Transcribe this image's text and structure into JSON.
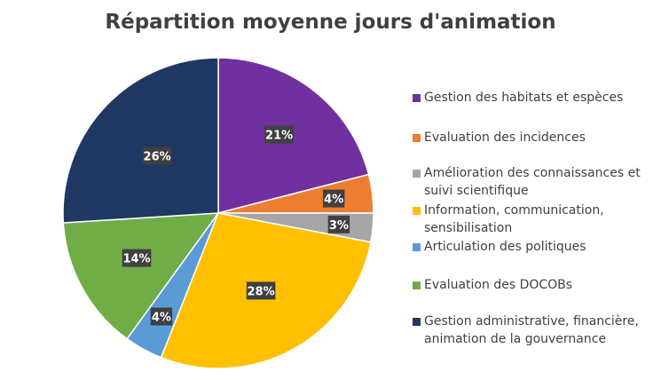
{
  "chart_data": {
    "type": "pie",
    "title": "Répartition moyenne jours d'animation",
    "categories": [
      "Gestion des habitats et espèces",
      "Evaluation des incidences",
      "Amélioration des connaissances et suivi scientifique",
      "Information, communication, sensibilisation",
      "Articulation des politiques",
      "Evaluation des DOCOBs",
      "Gestion administrative, financière, animation de la gouvernance"
    ],
    "values": [
      21,
      4,
      3,
      28,
      4,
      14,
      26
    ],
    "data_labels": [
      "21%",
      "4%",
      "3%",
      "28%",
      "4%",
      "14%",
      "26%"
    ],
    "colors": [
      "#7030A0",
      "#ED7D31",
      "#A5A5A5",
      "#FFC000",
      "#5B9BD5",
      "#70AD47",
      "#203864"
    ],
    "legend_position": "right"
  }
}
